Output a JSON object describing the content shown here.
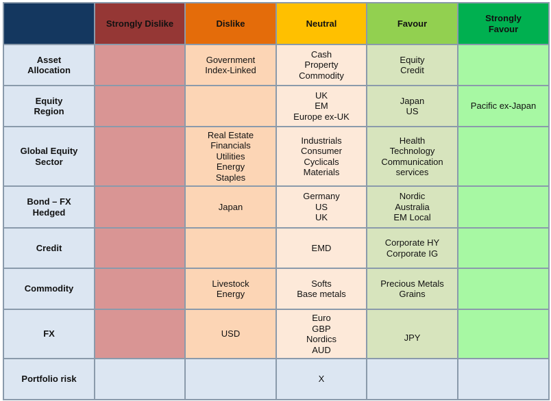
{
  "columns": [
    "",
    "Strongly Dislike",
    "Dislike",
    "Neutral",
    "Favour",
    "Strongly Favour"
  ],
  "rows": [
    {
      "label": "Asset Allocation",
      "strongly_dislike": "",
      "dislike": "Government\nIndex-Linked",
      "neutral": "Cash\nProperty\nCommodity",
      "favour": "Equity\nCredit",
      "strongly_favour": ""
    },
    {
      "label": "Equity Region",
      "strongly_dislike": "",
      "dislike": "",
      "neutral": "UK\nEM\nEurope ex-UK",
      "favour": "Japan\nUS",
      "strongly_favour": "Pacific ex-Japan"
    },
    {
      "label": "Global Equity Sector",
      "strongly_dislike": "",
      "dislike": "Real Estate\nFinancials\nUtilities\nEnergy\nStaples",
      "neutral": "Industrials\nConsumer\nCyclicals\nMaterials",
      "favour": "Health\nTechnology\nCommunication\nservices",
      "strongly_favour": ""
    },
    {
      "label": "Bond – FX Hedged",
      "strongly_dislike": "",
      "dislike": "Japan",
      "neutral": "Germany\nUS\nUK",
      "favour": "Nordic\nAustralia\nEM Local",
      "strongly_favour": ""
    },
    {
      "label": "Credit",
      "strongly_dislike": "",
      "dislike": "",
      "neutral": "EMD",
      "favour": "Corporate HY\nCorporate IG",
      "strongly_favour": ""
    },
    {
      "label": "Commodity",
      "strongly_dislike": "",
      "dislike": "Livestock\nEnergy",
      "neutral": "Softs\nBase metals",
      "favour": "Precious Metals\nGrains",
      "strongly_favour": ""
    },
    {
      "label": "FX",
      "strongly_dislike": "",
      "dislike": "USD",
      "neutral": "Euro\nGBP\nNordics\nAUD",
      "favour": "JPY",
      "strongly_favour": ""
    },
    {
      "label": "Portfolio risk",
      "strongly_dislike": "",
      "dislike": "",
      "neutral": "X",
      "favour": "",
      "strongly_favour": ""
    }
  ]
}
